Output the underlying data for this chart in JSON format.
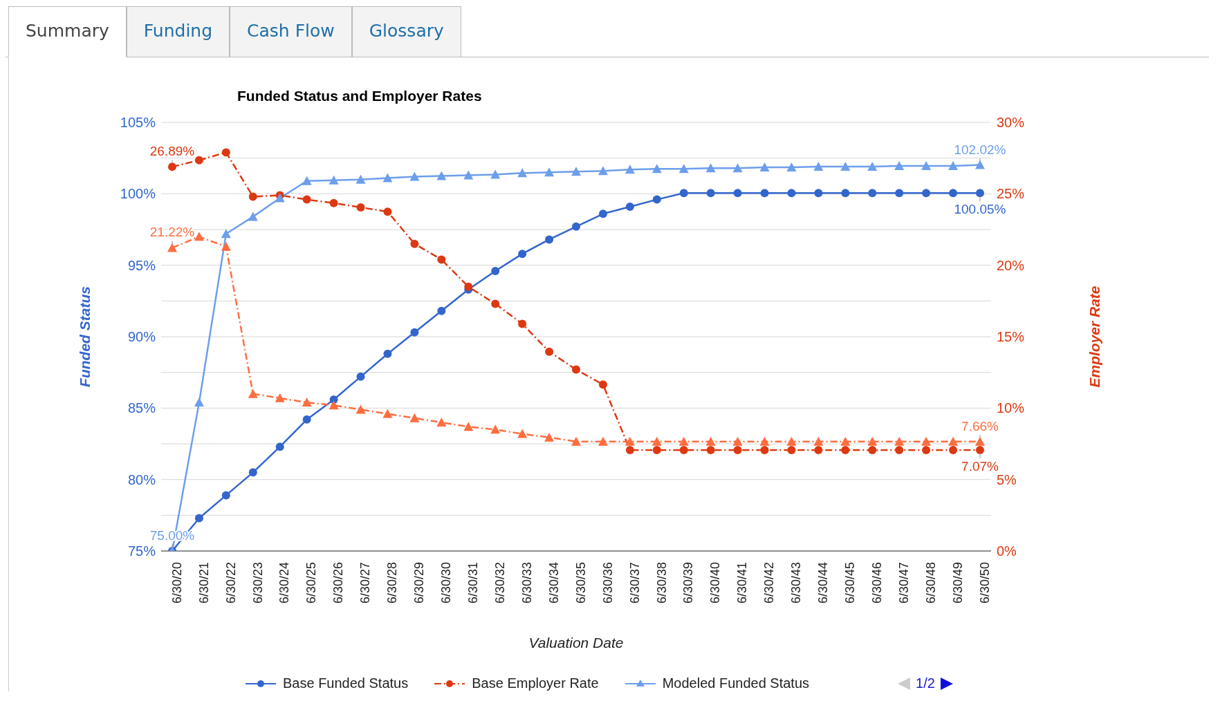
{
  "chart_data": {
    "type": "line",
    "title": "Funded Status and Employer Rates",
    "xlabel": "Valuation Date",
    "ylabel": "Funded Status",
    "y2label": "Employer Rate",
    "categories": [
      "6/30/20",
      "6/30/21",
      "6/30/22",
      "6/30/23",
      "6/30/24",
      "6/30/25",
      "6/30/26",
      "6/30/27",
      "6/30/28",
      "6/30/29",
      "6/30/30",
      "6/30/31",
      "6/30/32",
      "6/30/33",
      "6/30/34",
      "6/30/35",
      "6/30/36",
      "6/30/37",
      "6/30/38",
      "6/30/39",
      "6/30/40",
      "6/30/41",
      "6/30/42",
      "6/30/43",
      "6/30/44",
      "6/30/45",
      "6/30/46",
      "6/30/47",
      "6/30/48",
      "6/30/49",
      "6/30/50"
    ],
    "series": [
      {
        "name": "Base Funded Status",
        "color": "#3366cc",
        "marker": "circle",
        "line_style": "solid",
        "values": [
          75.0,
          77.3,
          78.9,
          80.5,
          82.3,
          84.2,
          85.6,
          87.2,
          88.8,
          90.3,
          91.8,
          93.3,
          94.6,
          95.8,
          96.8,
          97.7,
          98.6,
          99.1,
          99.6,
          100.05,
          100.05,
          100.05,
          100.05,
          100.05,
          100.05,
          100.05,
          100.05,
          100.05,
          100.05,
          100.05,
          100.05
        ],
        "value_labels": [
          null,
          null,
          null,
          null,
          null,
          null,
          null,
          null,
          null,
          null,
          null,
          null,
          null,
          null,
          null,
          null,
          null,
          null,
          null,
          null,
          null,
          null,
          null,
          null,
          null,
          null,
          null,
          null,
          null,
          null,
          "100.05%"
        ]
      },
      {
        "name": "Base Employer Rate",
        "color": "#dc3912",
        "marker": "circle",
        "line_style": "dashed",
        "axis": "y2",
        "values": [
          26.89,
          27.35,
          27.9,
          24.8,
          24.9,
          24.6,
          24.35,
          24.05,
          23.75,
          21.5,
          20.4,
          18.5,
          17.3,
          15.9,
          13.95,
          12.7,
          11.65,
          7.07,
          7.07,
          7.07,
          7.07,
          7.07,
          7.07,
          7.07,
          7.07,
          7.07,
          7.07,
          7.07,
          7.07,
          7.07,
          7.07
        ],
        "value_labels": [
          "26.89%",
          null,
          null,
          null,
          null,
          null,
          null,
          null,
          null,
          null,
          null,
          null,
          null,
          null,
          null,
          null,
          null,
          null,
          null,
          null,
          null,
          null,
          null,
          null,
          null,
          null,
          null,
          null,
          null,
          null,
          "7.07%"
        ]
      },
      {
        "name": "Modeled Funded Status",
        "color": "#6d9eeb",
        "marker": "triangle",
        "line_style": "solid",
        "values": [
          75.0,
          85.4,
          97.2,
          98.4,
          99.7,
          100.9,
          100.95,
          101.0,
          101.1,
          101.2,
          101.25,
          101.3,
          101.35,
          101.45,
          101.5,
          101.55,
          101.6,
          101.7,
          101.75,
          101.75,
          101.8,
          101.8,
          101.85,
          101.85,
          101.9,
          101.9,
          101.9,
          101.95,
          101.95,
          101.95,
          102.02
        ],
        "value_labels": [
          "75.00%",
          null,
          null,
          null,
          null,
          null,
          null,
          null,
          null,
          null,
          null,
          null,
          null,
          null,
          null,
          null,
          null,
          null,
          null,
          null,
          null,
          null,
          null,
          null,
          null,
          null,
          null,
          null,
          null,
          null,
          "102.02%"
        ]
      },
      {
        "color": "#ff6d3f",
        "marker": "triangle",
        "line_style": "dashed",
        "axis": "y2",
        "values": [
          21.22,
          22.0,
          21.3,
          11.0,
          10.7,
          10.4,
          10.2,
          9.9,
          9.6,
          9.3,
          9.0,
          8.7,
          8.5,
          8.2,
          7.95,
          7.66,
          7.66,
          7.66,
          7.66,
          7.66,
          7.66,
          7.66,
          7.66,
          7.66,
          7.66,
          7.66,
          7.66,
          7.66,
          7.66,
          7.66,
          7.66
        ],
        "value_labels": [
          "21.22%",
          null,
          null,
          null,
          null,
          null,
          null,
          null,
          null,
          null,
          null,
          null,
          null,
          null,
          null,
          null,
          null,
          null,
          null,
          null,
          null,
          null,
          null,
          null,
          null,
          null,
          null,
          null,
          null,
          null,
          "7.66%"
        ]
      }
    ],
    "ylim": [
      75,
      105
    ],
    "yticks": [
      {
        "value": 75,
        "label": "75%"
      },
      {
        "value": 77.5,
        "label": null
      },
      {
        "value": 80,
        "label": "80%"
      },
      {
        "value": 82.5,
        "label": null
      },
      {
        "value": 85,
        "label": "85%"
      },
      {
        "value": 87.5,
        "label": null
      },
      {
        "value": 90,
        "label": "90%"
      },
      {
        "value": 92.5,
        "label": null
      },
      {
        "value": 95,
        "label": "95%"
      },
      {
        "value": 97.5,
        "label": null
      },
      {
        "value": 100,
        "label": "100%"
      },
      {
        "value": 102.5,
        "label": null
      },
      {
        "value": 105,
        "label": "105%"
      }
    ],
    "y2lim": [
      0,
      30
    ],
    "y2ticks": [
      {
        "value": 0,
        "label": "0%"
      },
      {
        "value": 5,
        "label": "5%"
      },
      {
        "value": 10,
        "label": "10%"
      },
      {
        "value": 15,
        "label": "15%"
      },
      {
        "value": 20,
        "label": "20%"
      },
      {
        "value": 25,
        "label": "25%"
      },
      {
        "value": 30,
        "label": "30%"
      }
    ],
    "grid": "y",
    "legend": "bottom",
    "annotations": [
      "Summary",
      "Funding",
      "Cash Flow",
      "Glossary",
      "1/2"
    ]
  }
}
